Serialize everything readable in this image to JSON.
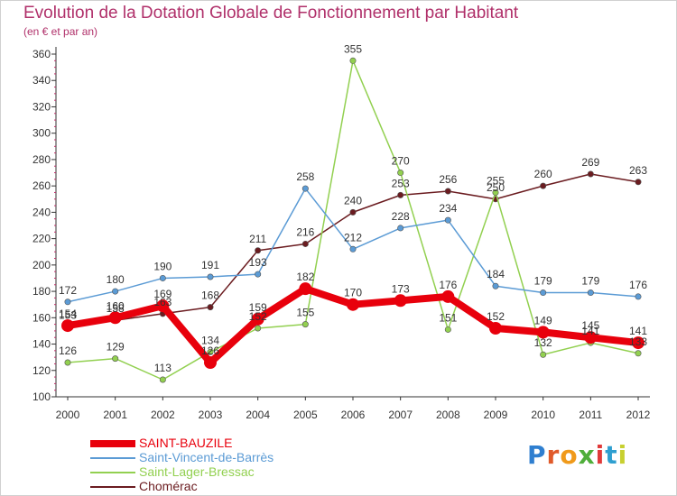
{
  "header": {
    "title": "Evolution de la Dotation Globale de Fonctionnement par Habitant",
    "subtitle": "(en € et par an)"
  },
  "brand": {
    "text": "Proxiti",
    "letter_colors": [
      "#2f7fd0",
      "#e05a2a",
      "#f09a1a",
      "#4fae3a",
      "#e03a3a",
      "#2f9fd0",
      "#c8d030"
    ]
  },
  "chart_data": {
    "type": "line",
    "title": "Evolution de la Dotation Globale de Fonctionnement par Habitant",
    "ylabel": "(en € et par an)",
    "xlabel": "",
    "categories": [
      "2000",
      "2001",
      "2002",
      "2003",
      "2004",
      "2005",
      "2006",
      "2007",
      "2008",
      "2009",
      "2010",
      "2011",
      "2012"
    ],
    "ylim": [
      100,
      360
    ],
    "yticks": [
      100,
      120,
      140,
      160,
      180,
      200,
      220,
      240,
      260,
      280,
      300,
      320,
      340,
      360
    ],
    "grid": false,
    "legend_position": "bottom-left",
    "series": [
      {
        "name": "SAINT-BAUZILE",
        "color": "#e8000c",
        "style": "thick",
        "values": [
          154,
          160,
          169,
          126,
          159,
          182,
          170,
          173,
          176,
          152,
          149,
          145,
          141
        ],
        "labels": [
          "154",
          "160",
          "169",
          "126",
          "159",
          "182",
          "170",
          "173",
          "176",
          "152",
          "149",
          "145",
          "141"
        ]
      },
      {
        "name": "Saint-Vincent-de-Barrès",
        "color": "#5b9bd5",
        "style": "thin",
        "values": [
          172,
          180,
          190,
          191,
          193,
          258,
          212,
          228,
          234,
          184,
          179,
          179,
          176
        ],
        "labels": [
          "172",
          "180",
          "190",
          "191",
          "193",
          "258",
          "212",
          "228",
          "234",
          "184",
          "179",
          "179",
          "176"
        ]
      },
      {
        "name": "Saint-Lager-Bressac",
        "color": "#92d050",
        "style": "thin",
        "values": [
          126,
          129,
          113,
          134,
          152,
          155,
          355,
          270,
          151,
          255,
          132,
          141,
          133
        ],
        "labels": [
          "126",
          "129",
          "113",
          "134",
          "152",
          "155",
          "355",
          "270",
          "151",
          "255",
          "132",
          "141",
          "133"
        ]
      },
      {
        "name": "Chomérac",
        "color": "#6b1c20",
        "style": "thin",
        "values": [
          153,
          158,
          163,
          168,
          211,
          216,
          240,
          253,
          256,
          250,
          260,
          269,
          263
        ],
        "labels": [
          "153",
          "158",
          "163",
          "168",
          "211",
          "216",
          "240",
          "253",
          "256",
          "250",
          "260",
          "269",
          "263"
        ]
      }
    ]
  }
}
